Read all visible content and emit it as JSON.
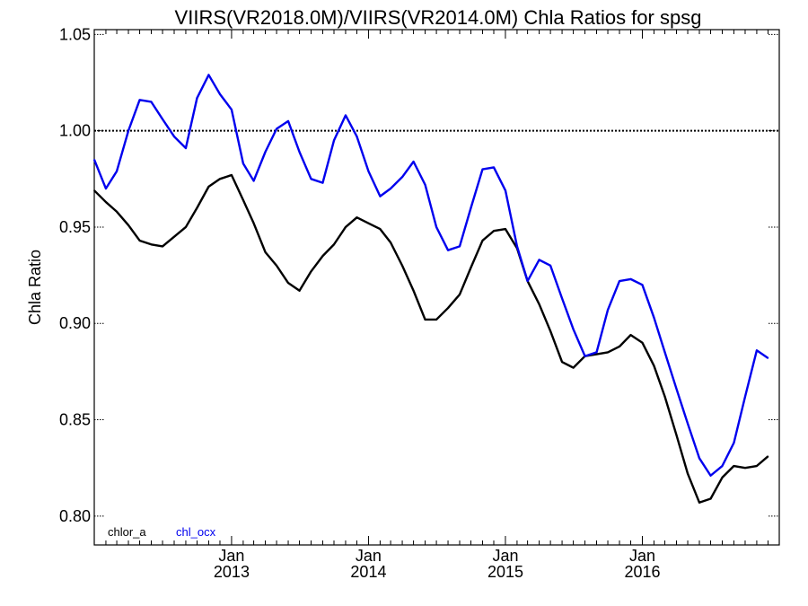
{
  "chart_data": {
    "type": "line",
    "title": "VIIRS(VR2018.0M)/VIIRS(VR2014.0M)  Chla Ratios for spsg",
    "ylabel": "Chla Ratio",
    "xlabel": "",
    "xlim": [
      "2012-01-01",
      "2016-12-31"
    ],
    "ylim": [
      0.785,
      1.0525
    ],
    "yticks": [
      0.8,
      0.85,
      0.9,
      0.95,
      1.0,
      1.05
    ],
    "ytick_labels": [
      "0.80",
      "0.85",
      "0.90",
      "0.95",
      "1.00",
      "1.05"
    ],
    "xticks": [
      {
        "date": "2013-01-01",
        "month": "Jan",
        "year": "2013"
      },
      {
        "date": "2014-01-01",
        "month": "Jan",
        "year": "2014"
      },
      {
        "date": "2015-01-01",
        "month": "Jan",
        "year": "2015"
      },
      {
        "date": "2016-01-01",
        "month": "Jan",
        "year": "2016"
      }
    ],
    "reference_line": {
      "y": 1.0,
      "style": "dotted"
    },
    "grid": false,
    "legend_position": "bottom-left",
    "x": [
      "2012-01-01",
      "2012-02-01",
      "2012-03-01",
      "2012-04-01",
      "2012-05-01",
      "2012-06-01",
      "2012-07-01",
      "2012-08-01",
      "2012-09-01",
      "2012-10-01",
      "2012-11-01",
      "2012-12-01",
      "2013-01-01",
      "2013-02-01",
      "2013-03-01",
      "2013-04-01",
      "2013-05-01",
      "2013-06-01",
      "2013-07-01",
      "2013-08-01",
      "2013-09-01",
      "2013-10-01",
      "2013-11-01",
      "2013-12-01",
      "2014-01-01",
      "2014-02-01",
      "2014-03-01",
      "2014-04-01",
      "2014-05-01",
      "2014-06-01",
      "2014-07-01",
      "2014-08-01",
      "2014-09-01",
      "2014-10-01",
      "2014-11-01",
      "2014-12-01",
      "2015-01-01",
      "2015-02-01",
      "2015-03-01",
      "2015-04-01",
      "2015-05-01",
      "2015-06-01",
      "2015-07-01",
      "2015-08-01",
      "2015-09-01",
      "2015-10-01",
      "2015-11-01",
      "2015-12-01",
      "2016-01-01",
      "2016-02-01",
      "2016-03-01",
      "2016-04-01",
      "2016-05-01",
      "2016-06-01",
      "2016-07-01",
      "2016-08-01",
      "2016-09-01",
      "2016-10-01",
      "2016-11-01",
      "2016-12-01"
    ],
    "series": [
      {
        "name": "chlor_a",
        "color": "#000000",
        "values": [
          0.969,
          0.963,
          0.958,
          0.951,
          0.943,
          0.941,
          0.94,
          0.945,
          0.95,
          0.96,
          0.971,
          0.975,
          0.977,
          0.964,
          0.952,
          0.937,
          0.93,
          0.921,
          0.917,
          0.927,
          0.935,
          0.941,
          0.95,
          0.955,
          0.952,
          0.949,
          0.942,
          0.93,
          0.917,
          0.902,
          0.902,
          0.908,
          0.915,
          0.929,
          0.943,
          0.948,
          0.949,
          0.939,
          0.922,
          0.91,
          0.896,
          0.88,
          0.877,
          0.883,
          0.884,
          0.885,
          0.888,
          0.894,
          0.89,
          0.878,
          0.862,
          0.842,
          0.822,
          0.807,
          0.809,
          0.82,
          0.826,
          0.825,
          0.826,
          0.831
        ]
      },
      {
        "name": "chl_ocx",
        "color": "#0000ee",
        "values": [
          0.985,
          0.97,
          0.979,
          1.0,
          1.016,
          1.015,
          1.006,
          0.997,
          0.991,
          1.017,
          1.029,
          1.019,
          1.011,
          0.983,
          0.974,
          0.989,
          1.001,
          1.005,
          0.989,
          0.975,
          0.973,
          0.995,
          1.008,
          0.997,
          0.979,
          0.966,
          0.97,
          0.976,
          0.984,
          0.972,
          0.95,
          0.938,
          0.94,
          0.96,
          0.98,
          0.981,
          0.969,
          0.94,
          0.922,
          0.933,
          0.93,
          0.913,
          0.897,
          0.883,
          0.885,
          0.907,
          0.922,
          0.923,
          0.92,
          0.903,
          0.885,
          0.866,
          0.848,
          0.83,
          0.821,
          0.826,
          0.838,
          0.862,
          0.886,
          0.882
        ]
      }
    ]
  }
}
